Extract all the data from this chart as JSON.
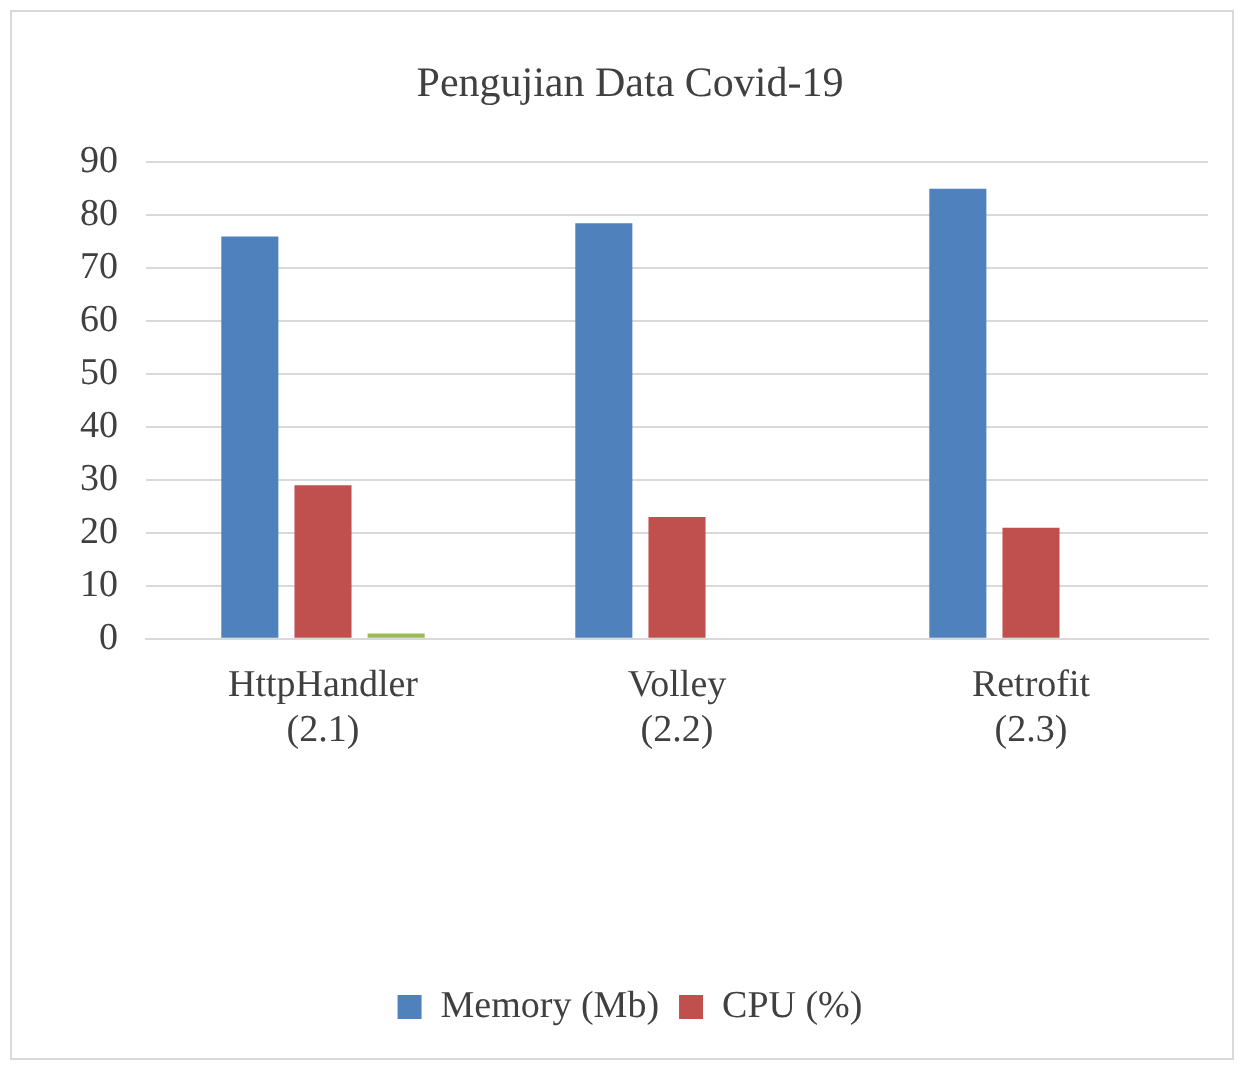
{
  "chart_data": {
    "type": "bar",
    "title": "Pengujian Data Covid-19",
    "categories": [
      "HttpHandler (2.1)",
      "Volley (2.2)",
      "Retrofit (2.3)"
    ],
    "series": [
      {
        "name": "Memory (Mb)",
        "color": "#4f81bd",
        "values": [
          76,
          78.5,
          85
        ]
      },
      {
        "name": "CPU (%)",
        "color": "#c0504d",
        "values": [
          29,
          23,
          21
        ]
      },
      {
        "color": "#9bbb59",
        "values": [
          1,
          0,
          0
        ]
      }
    ],
    "ylim": [
      0,
      90
    ],
    "yticks": [
      0,
      10,
      20,
      30,
      40,
      50,
      60,
      70,
      80,
      90
    ],
    "grid": "y",
    "legend": "bottom"
  }
}
